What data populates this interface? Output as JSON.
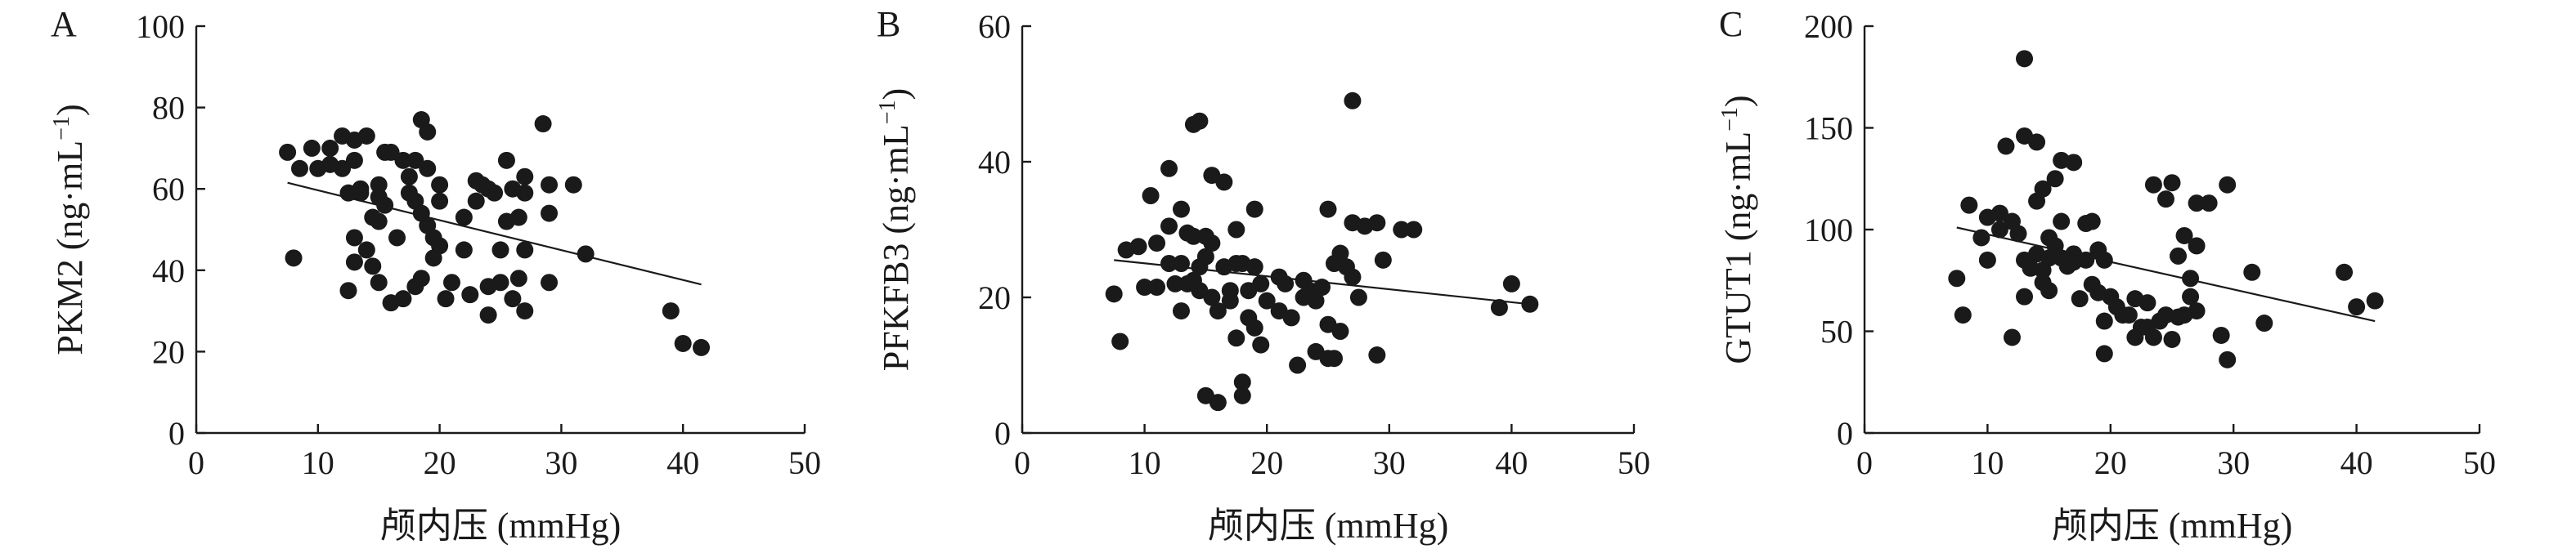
{
  "chart_data": [
    {
      "panel_label": "A",
      "type": "scatter",
      "xlabel": "颅内压 (mmHg)",
      "ylabel_main": "PKM2 (ng·mL",
      "ylabel_sup": "−1",
      "ylabel_end": ")",
      "xlim": [
        0,
        50
      ],
      "ylim": [
        0,
        100
      ],
      "xticks": [
        0,
        10,
        20,
        30,
        40,
        50
      ],
      "yticks": [
        0,
        20,
        40,
        60,
        80,
        100
      ],
      "trendline": {
        "x": [
          7.5,
          41.5
        ],
        "y": [
          61.5,
          36.5
        ]
      },
      "points": [
        [
          7.5,
          69
        ],
        [
          8,
          43
        ],
        [
          8.5,
          65
        ],
        [
          9.5,
          70
        ],
        [
          10,
          65
        ],
        [
          11,
          66
        ],
        [
          11,
          70
        ],
        [
          12,
          73
        ],
        [
          12,
          65
        ],
        [
          12.5,
          59
        ],
        [
          12.5,
          35
        ],
        [
          13,
          72
        ],
        [
          13,
          67
        ],
        [
          13,
          48
        ],
        [
          13,
          42
        ],
        [
          13.5,
          60
        ],
        [
          13.5,
          59
        ],
        [
          14,
          73
        ],
        [
          14,
          45
        ],
        [
          14.5,
          53
        ],
        [
          14.5,
          41
        ],
        [
          15,
          61
        ],
        [
          15,
          58
        ],
        [
          15,
          52
        ],
        [
          15,
          37
        ],
        [
          15.5,
          69
        ],
        [
          15.5,
          56
        ],
        [
          16,
          69
        ],
        [
          16,
          32
        ],
        [
          16.5,
          48
        ],
        [
          17,
          67
        ],
        [
          17,
          33
        ],
        [
          17.5,
          63
        ],
        [
          17.5,
          59
        ],
        [
          18,
          67
        ],
        [
          18,
          57
        ],
        [
          18,
          36
        ],
        [
          18.5,
          77
        ],
        [
          18.5,
          54
        ],
        [
          18.5,
          38
        ],
        [
          19,
          74
        ],
        [
          19,
          65
        ],
        [
          19,
          51
        ],
        [
          19.5,
          48
        ],
        [
          19.5,
          43
        ],
        [
          20,
          61
        ],
        [
          20,
          57
        ],
        [
          20,
          46
        ],
        [
          20.5,
          33
        ],
        [
          21,
          37
        ],
        [
          22,
          53
        ],
        [
          22,
          45
        ],
        [
          22.5,
          34
        ],
        [
          23,
          62
        ],
        [
          23,
          57
        ],
        [
          23.5,
          61
        ],
        [
          24,
          60
        ],
        [
          24,
          36
        ],
        [
          24,
          29
        ],
        [
          24.5,
          59
        ],
        [
          25,
          45
        ],
        [
          25,
          37
        ],
        [
          25.5,
          67
        ],
        [
          25.5,
          52
        ],
        [
          26,
          60
        ],
        [
          26,
          33
        ],
        [
          26.5,
          53
        ],
        [
          26.5,
          38
        ],
        [
          27,
          63
        ],
        [
          27,
          59
        ],
        [
          27,
          45
        ],
        [
          27,
          30
        ],
        [
          28.5,
          76
        ],
        [
          29,
          61
        ],
        [
          29,
          54
        ],
        [
          29,
          37
        ],
        [
          31,
          61
        ],
        [
          32,
          44
        ],
        [
          39,
          30
        ],
        [
          40,
          22
        ],
        [
          41.5,
          21
        ]
      ]
    },
    {
      "panel_label": "B",
      "type": "scatter",
      "xlabel": "颅内压 (mmHg)",
      "ylabel_main": "PFKFB3 (ng·mL",
      "ylabel_sup": "−1",
      "ylabel_end": ")",
      "xlim": [
        0,
        50
      ],
      "ylim": [
        0,
        60
      ],
      "xticks": [
        0,
        10,
        20,
        30,
        40,
        50
      ],
      "yticks": [
        0,
        20,
        40,
        60
      ],
      "trendline": {
        "x": [
          7.5,
          41.5
        ],
        "y": [
          25.5,
          19
        ]
      },
      "points": [
        [
          7.5,
          20.5
        ],
        [
          8,
          13.5
        ],
        [
          8.5,
          27
        ],
        [
          9.5,
          27.5
        ],
        [
          10,
          21.5
        ],
        [
          10.5,
          35
        ],
        [
          11,
          28
        ],
        [
          11,
          21.5
        ],
        [
          12,
          39
        ],
        [
          12,
          30.5
        ],
        [
          12,
          25
        ],
        [
          12.5,
          22
        ],
        [
          13,
          33
        ],
        [
          13,
          25
        ],
        [
          13,
          18
        ],
        [
          13.5,
          29.5
        ],
        [
          13.5,
          22
        ],
        [
          14,
          45.5
        ],
        [
          14,
          29
        ],
        [
          14,
          22.5
        ],
        [
          14.5,
          46
        ],
        [
          14.5,
          24.5
        ],
        [
          14.5,
          21
        ],
        [
          15,
          29
        ],
        [
          15,
          26
        ],
        [
          15,
          5.5
        ],
        [
          15.5,
          38
        ],
        [
          15.5,
          28
        ],
        [
          15.5,
          20
        ],
        [
          16,
          18
        ],
        [
          16,
          4.5
        ],
        [
          16.5,
          37
        ],
        [
          16.5,
          24.5
        ],
        [
          17,
          21
        ],
        [
          17,
          19.5
        ],
        [
          17.5,
          30
        ],
        [
          17.5,
          25
        ],
        [
          17.5,
          14
        ],
        [
          18,
          25
        ],
        [
          18,
          5.5
        ],
        [
          18,
          7.5
        ],
        [
          18.5,
          21
        ],
        [
          18.5,
          17
        ],
        [
          19,
          33
        ],
        [
          19,
          24.5
        ],
        [
          19,
          15.5
        ],
        [
          19.5,
          22
        ],
        [
          19.5,
          13
        ],
        [
          20,
          19.5
        ],
        [
          21,
          23
        ],
        [
          21,
          18
        ],
        [
          21.5,
          22
        ],
        [
          22,
          17
        ],
        [
          22.5,
          10
        ],
        [
          23,
          22.5
        ],
        [
          23,
          20
        ],
        [
          23.5,
          21
        ],
        [
          24,
          19.5
        ],
        [
          24,
          12
        ],
        [
          24.5,
          21.5
        ],
        [
          25,
          33
        ],
        [
          25,
          16
        ],
        [
          25,
          11
        ],
        [
          25.5,
          25
        ],
        [
          25.5,
          11
        ],
        [
          26,
          26.5
        ],
        [
          26,
          15
        ],
        [
          26.5,
          24.5
        ],
        [
          27,
          49
        ],
        [
          27,
          31
        ],
        [
          27,
          23
        ],
        [
          27.5,
          20
        ],
        [
          28,
          30.5
        ],
        [
          29,
          31
        ],
        [
          29,
          11.5
        ],
        [
          29.5,
          25.5
        ],
        [
          31,
          30
        ],
        [
          32,
          30
        ],
        [
          39,
          18.5
        ],
        [
          40,
          22
        ],
        [
          41.5,
          19
        ]
      ]
    },
    {
      "panel_label": "C",
      "type": "scatter",
      "xlabel": "颅内压 (mmHg)",
      "ylabel_main": "GTUT1 (ng·mL",
      "ylabel_sup": "−1",
      "ylabel_end": ")",
      "xlim": [
        0,
        50
      ],
      "ylim": [
        0,
        200
      ],
      "xticks": [
        0,
        10,
        20,
        30,
        40,
        50
      ],
      "yticks": [
        0,
        50,
        100,
        150,
        200
      ],
      "trendline": {
        "x": [
          7.5,
          41.5
        ],
        "y": [
          101,
          55
        ]
      },
      "points": [
        [
          7.5,
          76
        ],
        [
          8,
          58
        ],
        [
          8.5,
          112
        ],
        [
          9.5,
          96
        ],
        [
          10,
          106
        ],
        [
          10,
          85
        ],
        [
          11,
          108
        ],
        [
          11,
          100
        ],
        [
          11.5,
          141
        ],
        [
          12,
          47
        ],
        [
          12,
          104
        ],
        [
          12.5,
          98
        ],
        [
          13,
          184
        ],
        [
          13,
          146
        ],
        [
          13,
          85
        ],
        [
          13,
          67
        ],
        [
          13.5,
          81
        ],
        [
          14,
          143
        ],
        [
          14,
          114
        ],
        [
          14,
          88
        ],
        [
          14.5,
          120
        ],
        [
          14.5,
          80
        ],
        [
          14.5,
          74
        ],
        [
          15,
          96
        ],
        [
          15,
          86
        ],
        [
          15,
          70
        ],
        [
          15.5,
          125
        ],
        [
          15.5,
          92
        ],
        [
          16,
          134
        ],
        [
          16,
          104
        ],
        [
          16,
          86
        ],
        [
          16.5,
          82
        ],
        [
          17,
          133
        ],
        [
          17,
          88
        ],
        [
          17,
          84
        ],
        [
          17.5,
          66
        ],
        [
          18,
          103
        ],
        [
          18,
          85
        ],
        [
          18.5,
          104
        ],
        [
          18.5,
          73
        ],
        [
          19,
          90
        ],
        [
          19,
          69
        ],
        [
          19.5,
          85
        ],
        [
          19.5,
          55
        ],
        [
          19.5,
          39
        ],
        [
          20,
          67
        ],
        [
          20.5,
          62
        ],
        [
          21,
          58
        ],
        [
          21.5,
          58
        ],
        [
          22,
          66
        ],
        [
          22,
          47
        ],
        [
          22.5,
          52
        ],
        [
          23,
          64
        ],
        [
          23,
          52
        ],
        [
          23.5,
          122
        ],
        [
          23.5,
          47
        ],
        [
          24,
          55
        ],
        [
          24.5,
          115
        ],
        [
          24.5,
          58
        ],
        [
          25,
          123
        ],
        [
          25,
          46
        ],
        [
          25.5,
          57
        ],
        [
          25.5,
          87
        ],
        [
          26,
          97
        ],
        [
          26,
          58
        ],
        [
          26.5,
          76
        ],
        [
          26.5,
          67
        ],
        [
          27,
          113
        ],
        [
          27,
          92
        ],
        [
          27,
          60
        ],
        [
          28,
          113
        ],
        [
          29,
          48
        ],
        [
          29.5,
          122
        ],
        [
          29.5,
          36
        ],
        [
          31.5,
          79
        ],
        [
          32.5,
          54
        ],
        [
          39,
          79
        ],
        [
          40,
          62
        ],
        [
          41.5,
          65
        ]
      ]
    }
  ]
}
